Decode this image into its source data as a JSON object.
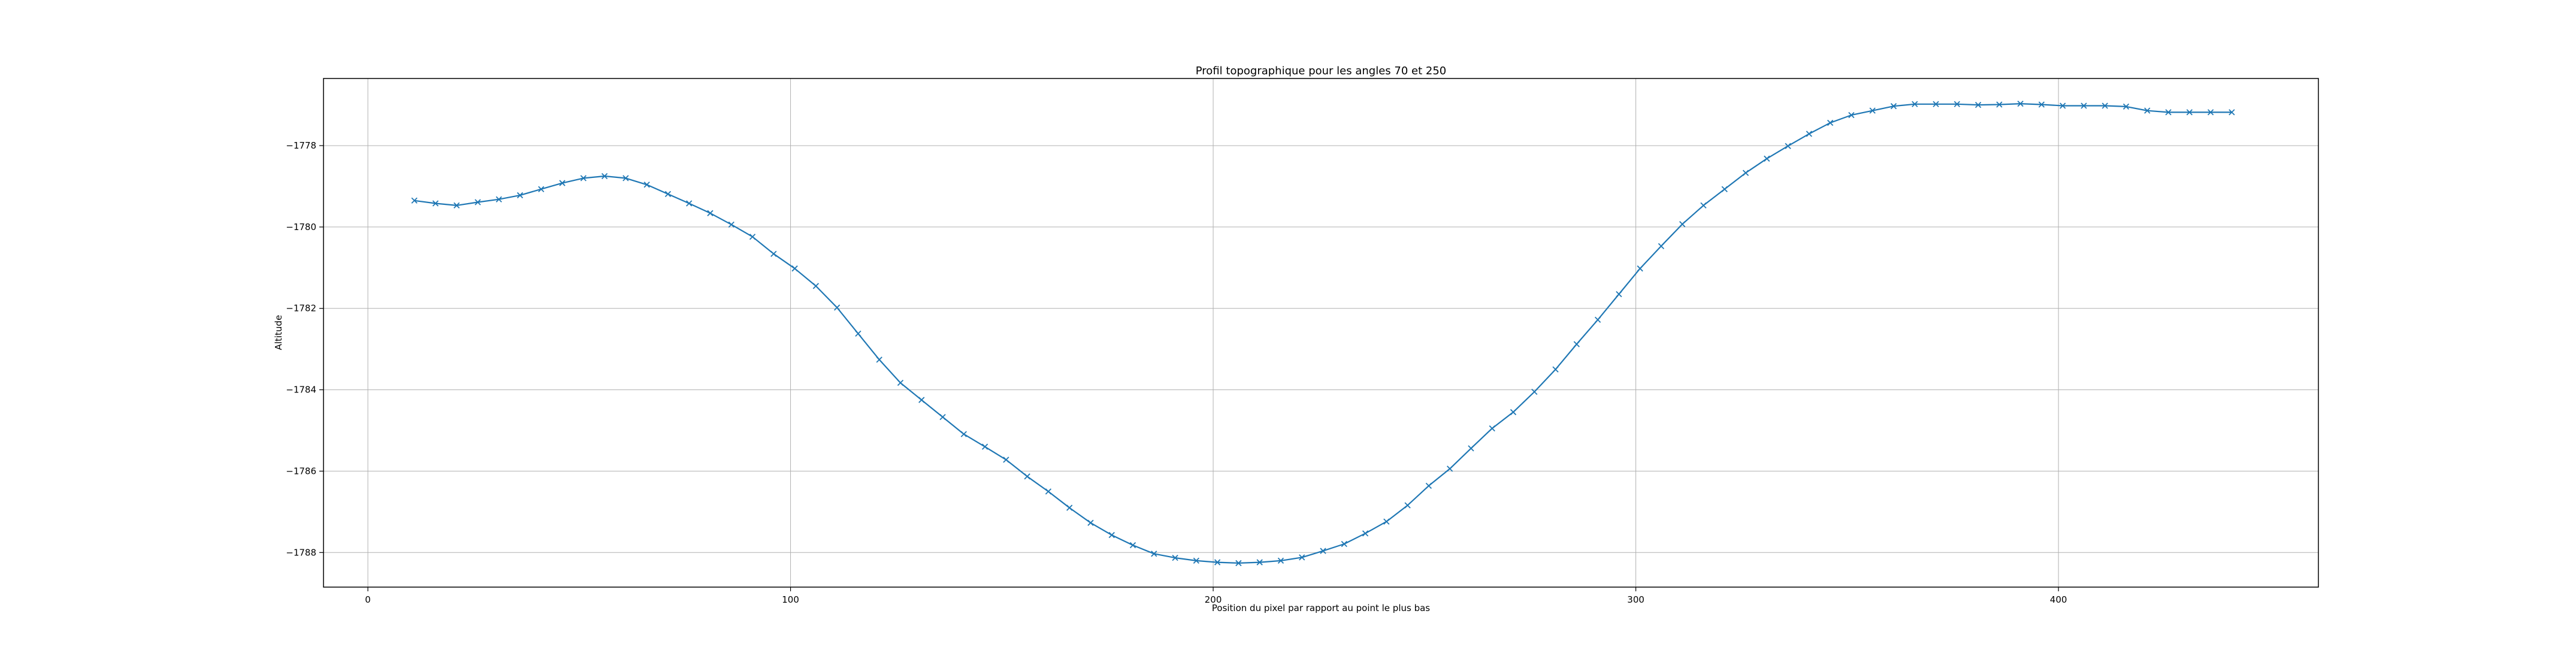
{
  "chart_data": {
    "type": "line",
    "title": "Profil topographique pour les angles 70 et 250",
    "xlabel": "Position du pixel par rapport au point le plus bas",
    "ylabel": "Altitude",
    "xlim": [
      -10.5,
      461.5
    ],
    "ylim": [
      -1788.85,
      -1776.35
    ],
    "xticks": [
      0,
      100,
      200,
      300,
      400
    ],
    "xtick_labels": [
      "0",
      "100",
      "200",
      "300",
      "400"
    ],
    "yticks": [
      -1778,
      -1780,
      -1782,
      -1784,
      -1786,
      -1788
    ],
    "ytick_labels": [
      "−1778",
      "−1780",
      "−1782",
      "−1784",
      "−1786",
      "−1788"
    ],
    "grid": true,
    "colors": {
      "line": "#1f77b4",
      "grid": "#b0b0b0",
      "axes": "#000000"
    },
    "marker": "x",
    "series": [
      {
        "x": [
          11,
          16,
          21,
          26,
          31,
          36,
          41,
          46,
          51,
          56,
          61,
          66,
          71,
          76,
          81,
          86,
          91,
          96,
          101,
          106,
          111,
          116,
          121,
          126,
          131,
          136,
          141,
          146,
          151,
          156,
          161,
          166,
          171,
          176,
          181,
          186,
          191,
          196,
          201,
          206,
          211,
          216,
          221,
          226,
          231,
          236,
          241,
          246,
          251,
          256,
          261,
          266,
          271,
          276,
          281,
          286,
          291,
          296,
          301,
          306,
          311,
          316,
          321,
          326,
          331,
          336,
          341,
          346,
          351,
          356,
          361,
          366,
          371,
          376,
          381,
          386,
          391,
          396,
          401,
          406,
          411,
          416,
          421,
          426,
          431,
          436,
          441
        ],
        "y": [
          -1779.35,
          -1779.42,
          -1779.47,
          -1779.39,
          -1779.32,
          -1779.22,
          -1779.07,
          -1778.92,
          -1778.8,
          -1778.75,
          -1778.8,
          -1778.96,
          -1779.19,
          -1779.42,
          -1779.66,
          -1779.94,
          -1780.24,
          -1780.66,
          -1781.02,
          -1781.45,
          -1781.98,
          -1782.62,
          -1783.26,
          -1783.83,
          -1784.25,
          -1784.67,
          -1785.09,
          -1785.4,
          -1785.72,
          -1786.13,
          -1786.5,
          -1786.9,
          -1787.27,
          -1787.57,
          -1787.82,
          -1788.03,
          -1788.13,
          -1788.2,
          -1788.24,
          -1788.26,
          -1788.24,
          -1788.2,
          -1788.12,
          -1787.96,
          -1787.79,
          -1787.53,
          -1787.24,
          -1786.84,
          -1786.36,
          -1785.94,
          -1785.44,
          -1784.95,
          -1784.55,
          -1784.05,
          -1783.5,
          -1782.88,
          -1782.28,
          -1781.65,
          -1781.02,
          -1780.47,
          -1779.93,
          -1779.47,
          -1779.07,
          -1778.67,
          -1778.32,
          -1778.01,
          -1777.71,
          -1777.44,
          -1777.25,
          -1777.14,
          -1777.03,
          -1776.98,
          -1776.98,
          -1776.98,
          -1777.0,
          -1776.99,
          -1776.97,
          -1776.99,
          -1777.02,
          -1777.02,
          -1777.02,
          -1777.04,
          -1777.14,
          -1777.18,
          -1777.18,
          -1777.18,
          -1777.18
        ]
      }
    ]
  }
}
